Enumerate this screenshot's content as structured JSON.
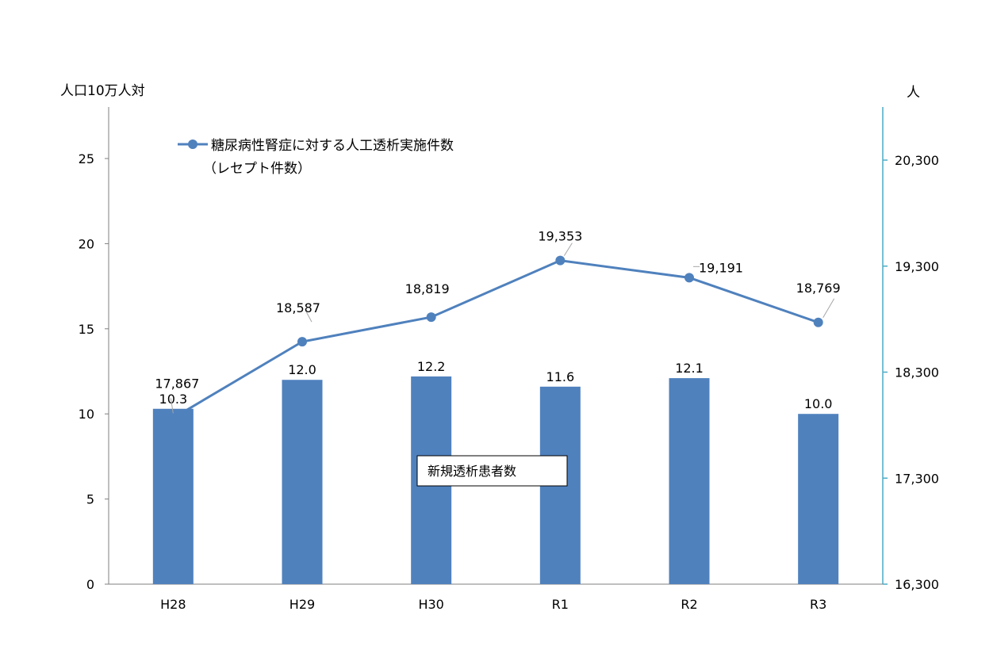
{
  "chart_data": {
    "type": "bar",
    "categories": [
      "H28",
      "H29",
      "H30",
      "R1",
      "R2",
      "R3"
    ],
    "left_axis": {
      "label": "人口10万人対",
      "ylim": [
        0,
        25
      ],
      "ticks": [
        0,
        5,
        10,
        15,
        20,
        25
      ]
    },
    "right_axis": {
      "label": "人",
      "ylim": [
        16300,
        20300
      ],
      "ticks": [
        16300,
        17300,
        18300,
        19300,
        20300
      ],
      "tick_labels": [
        "16,300",
        "17,300",
        "18,300",
        "19,300",
        "20,300"
      ]
    },
    "series": [
      {
        "name": "新規透析患者数",
        "kind": "bar",
        "axis": "left",
        "color": "#4f81bd",
        "values": [
          10.3,
          12.0,
          12.2,
          11.6,
          12.1,
          10.0
        ],
        "labels": [
          "10.3",
          "12.0",
          "12.2",
          "11.6",
          "12.1",
          "10.0"
        ]
      },
      {
        "name": "糖尿病性腎症に対する人工透析実施件数",
        "name_line2": "（レセプト件数）",
        "kind": "line",
        "axis": "right",
        "color": "#4f81bd",
        "values": [
          17867,
          18587,
          18819,
          19353,
          19191,
          18769
        ],
        "labels": [
          "17,867",
          "18,587",
          "18,819",
          "19,353",
          "19,191",
          "18,769"
        ]
      }
    ],
    "grid": false,
    "legend": "top-left"
  }
}
